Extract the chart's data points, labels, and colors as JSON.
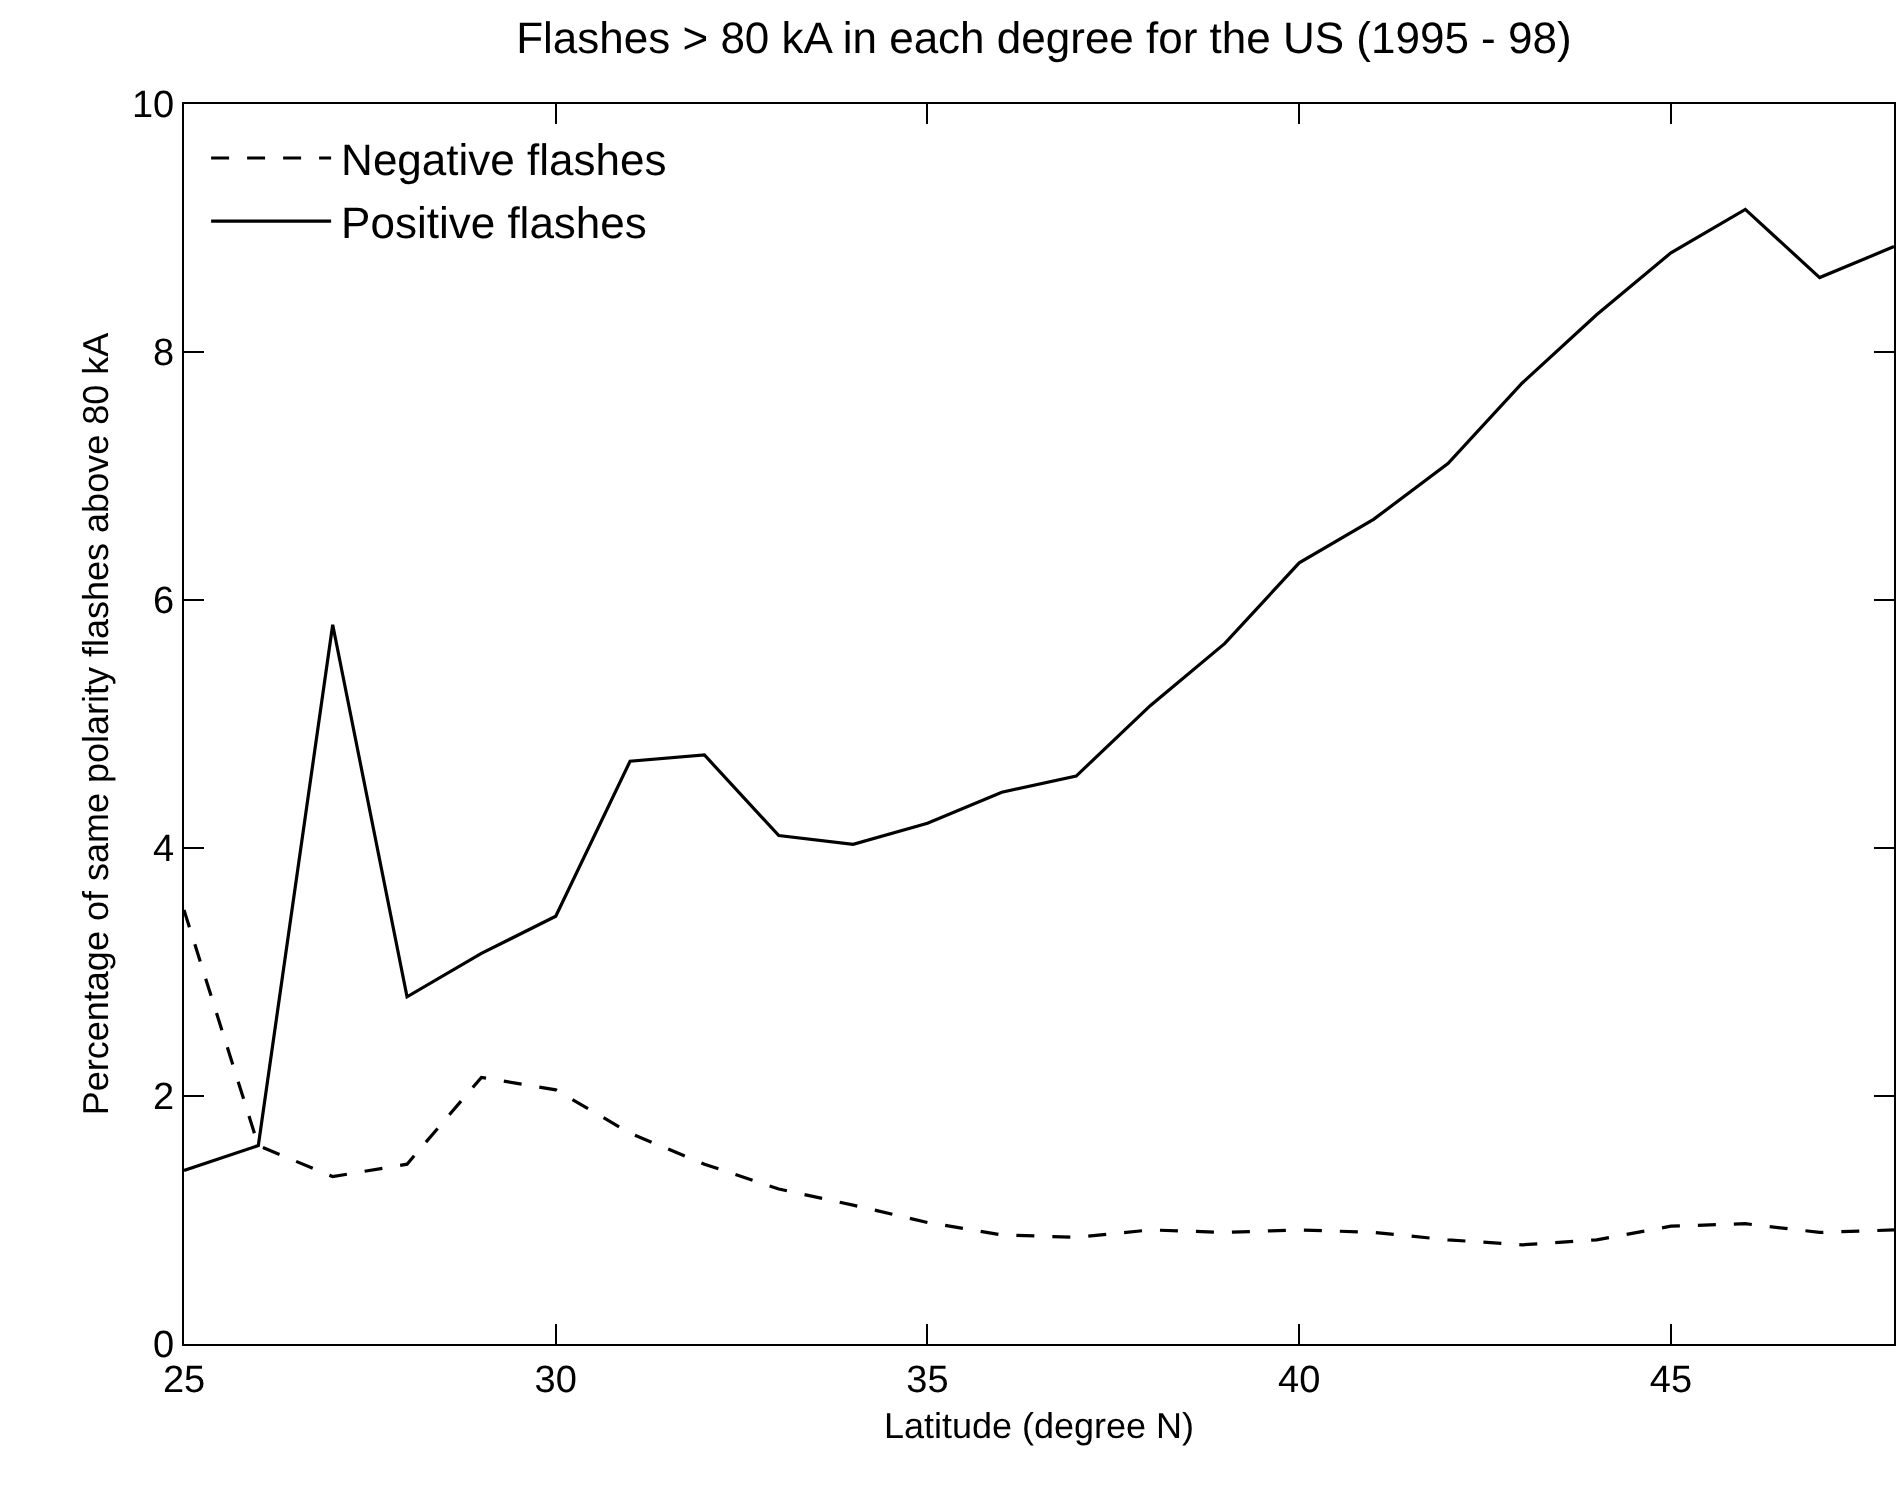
{
  "chart_data": {
    "type": "line",
    "title": "Flashes > 80 kA in each degree for the US (1995 - 98)",
    "xlabel": "Latitude (degree N)",
    "ylabel": "Percentage of same polarity flashes above 80 kA",
    "x": [
      25,
      26,
      27,
      28,
      29,
      30,
      31,
      32,
      33,
      34,
      35,
      36,
      37,
      38,
      39,
      40,
      41,
      42,
      43,
      44,
      45,
      46,
      47,
      48
    ],
    "series": [
      {
        "name": "Negative flashes",
        "color": "#000000",
        "line_style": "dashed",
        "values": [
          3.5,
          1.6,
          1.35,
          1.45,
          2.15,
          2.05,
          1.7,
          1.45,
          1.25,
          1.12,
          0.98,
          0.88,
          0.86,
          0.92,
          0.9,
          0.92,
          0.9,
          0.84,
          0.8,
          0.84,
          0.95,
          0.97,
          0.9,
          0.92
        ]
      },
      {
        "name": "Positive flashes",
        "color": "#000000",
        "line_style": "solid",
        "values": [
          1.4,
          1.6,
          5.8,
          2.8,
          3.15,
          3.45,
          4.7,
          4.75,
          4.1,
          4.03,
          4.2,
          4.45,
          4.58,
          5.15,
          5.65,
          6.3,
          6.65,
          7.1,
          7.75,
          8.3,
          8.8,
          9.15,
          8.6,
          8.85
        ]
      }
    ],
    "xlim": [
      25,
      48
    ],
    "xticks": [
      25,
      30,
      35,
      40,
      45
    ],
    "ylim": [
      0,
      10
    ],
    "yticks": [
      0,
      2,
      4,
      6,
      8,
      10
    ],
    "grid": false,
    "legend": "top left",
    "marker": "none"
  }
}
